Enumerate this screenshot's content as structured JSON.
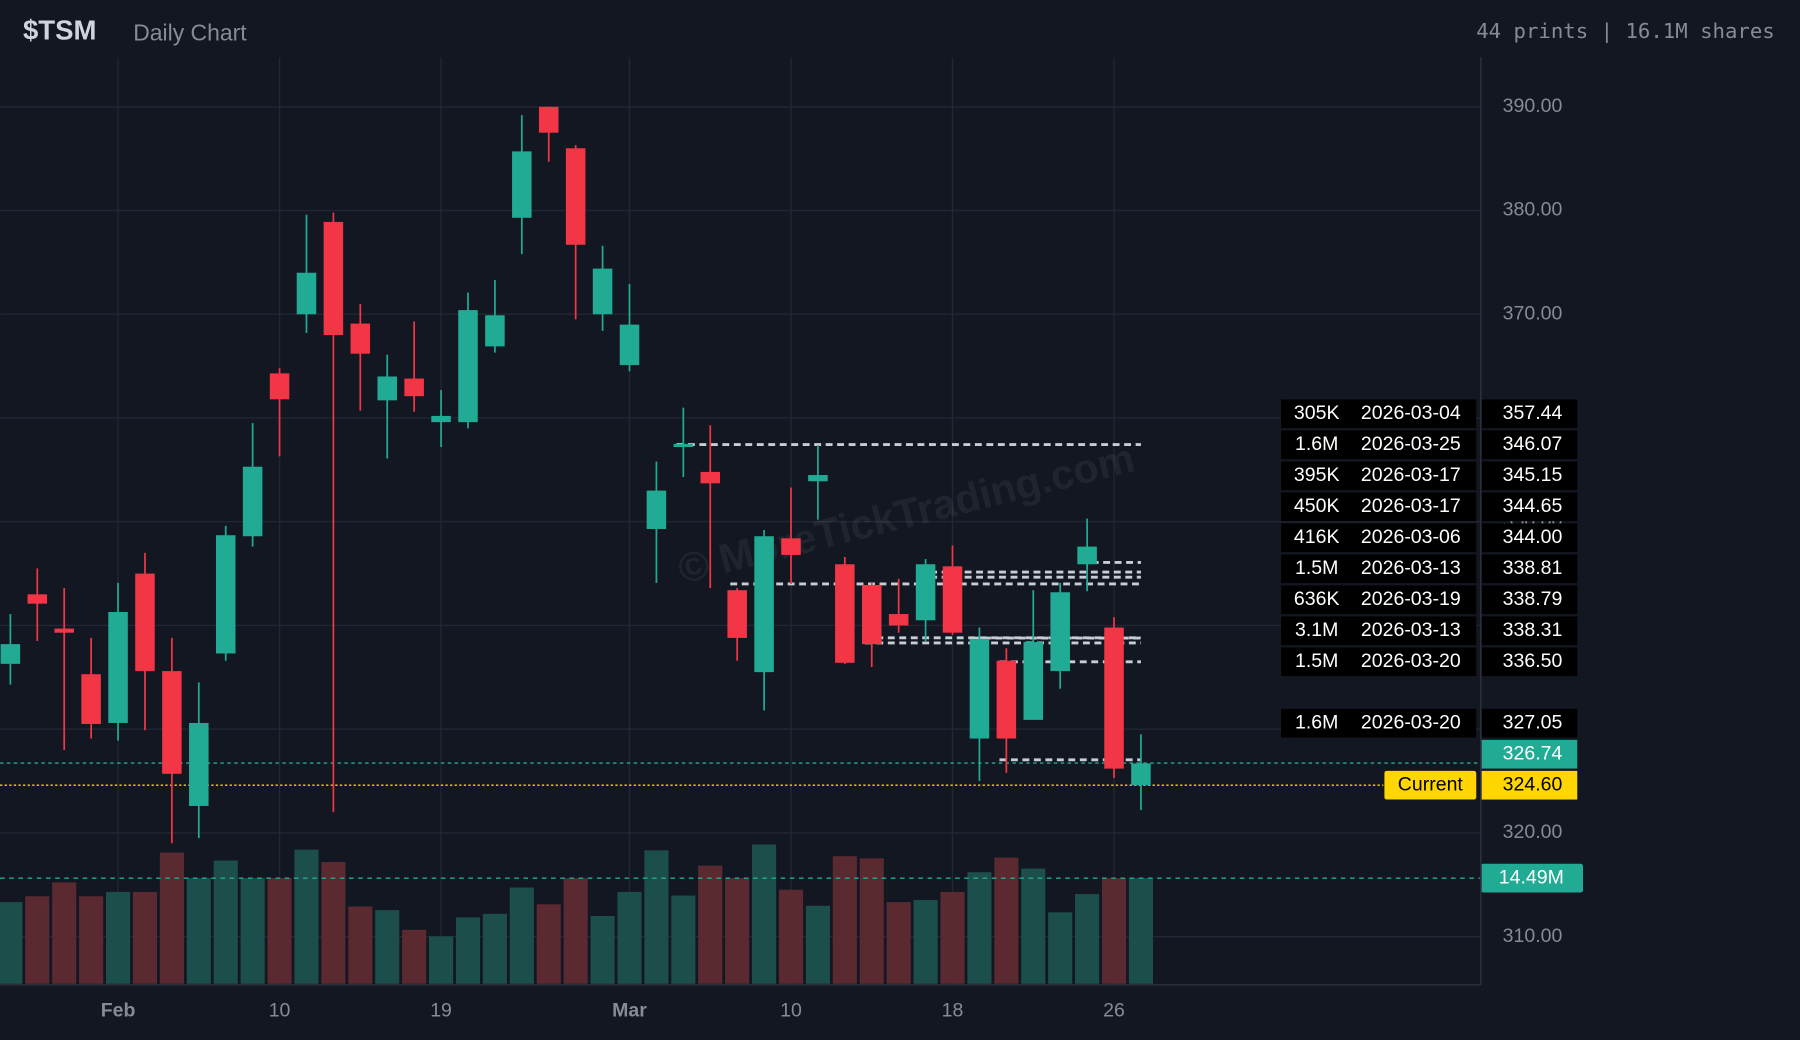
{
  "header": {
    "title": "$TSM",
    "subtitle": "Daily Chart",
    "stats": "44 prints | 16.1M shares"
  },
  "chart_data": {
    "type": "candlestick",
    "watermark": "© MoreTickTrading.com",
    "categories": [
      null,
      null,
      null,
      null,
      "Feb",
      null,
      null,
      null,
      null,
      null,
      "10",
      null,
      null,
      null,
      null,
      null,
      "19",
      null,
      null,
      null,
      null,
      null,
      null,
      "Mar",
      null,
      null,
      null,
      null,
      null,
      "10",
      null,
      null,
      null,
      null,
      null,
      "18",
      null,
      null,
      null,
      null,
      null,
      "26",
      null
    ],
    "open": [
      336.3,
      343.0,
      339.7,
      335.3,
      330.6,
      345.0,
      335.6,
      322.6,
      337.3,
      348.6,
      364.3,
      370.0,
      378.9,
      369.1,
      361.7,
      363.8,
      359.6,
      359.6,
      366.9,
      379.3,
      390.0,
      386.0,
      370.0,
      365.1,
      349.3,
      357.2,
      354.8,
      343.4,
      335.5,
      348.4,
      353.9,
      345.9,
      343.9,
      341.1,
      340.5,
      345.7,
      329.1,
      336.6,
      330.9,
      335.6,
      345.9,
      339.8,
      324.6
    ],
    "high": [
      341.1,
      345.5,
      343.6,
      338.8,
      344.1,
      347.0,
      338.8,
      334.5,
      349.6,
      359.5,
      364.8,
      379.6,
      379.8,
      371.0,
      366.1,
      369.3,
      362.7,
      372.1,
      373.3,
      389.2,
      390.0,
      386.3,
      376.6,
      372.9,
      355.8,
      361.0,
      359.3,
      343.6,
      349.2,
      353.3,
      357.4,
      346.6,
      344.1,
      344.5,
      346.4,
      347.7,
      339.8,
      337.8,
      343.4,
      344.1,
      350.3,
      340.8,
      329.5
    ],
    "low": [
      334.3,
      338.5,
      328.0,
      329.1,
      328.9,
      329.9,
      319.0,
      319.5,
      336.6,
      347.6,
      356.3,
      368.2,
      322.0,
      360.7,
      356.1,
      360.6,
      357.2,
      359.0,
      366.3,
      375.8,
      384.7,
      369.5,
      368.4,
      364.5,
      344.1,
      354.3,
      343.6,
      336.6,
      331.8,
      344.0,
      350.2,
      336.3,
      336.0,
      339.3,
      338.5,
      339.1,
      325.0,
      325.8,
      330.9,
      333.9,
      343.3,
      325.3,
      322.2
    ],
    "close": [
      338.2,
      342.1,
      339.3,
      330.5,
      341.3,
      335.6,
      325.7,
      330.6,
      348.7,
      355.3,
      361.8,
      374.0,
      368.0,
      366.2,
      364.0,
      362.1,
      360.2,
      370.4,
      369.9,
      385.7,
      387.5,
      376.7,
      374.4,
      369.0,
      353.0,
      357.5,
      353.7,
      338.8,
      348.6,
      346.8,
      354.5,
      336.4,
      338.2,
      340.0,
      345.9,
      339.3,
      338.7,
      329.1,
      338.4,
      343.2,
      347.6,
      326.2,
      326.7
    ],
    "volume": [
      11.2,
      12.0,
      13.9,
      12.0,
      12.6,
      12.6,
      18.0,
      14.5,
      16.9,
      14.5,
      14.5,
      18.4,
      16.7,
      10.6,
      10.1,
      7.4,
      6.5,
      9.1,
      9.6,
      13.2,
      10.9,
      14.5,
      9.3,
      12.6,
      18.3,
      12.1,
      16.2,
      14.5,
      19.1,
      12.9,
      10.7,
      17.5,
      17.2,
      11.2,
      11.5,
      12.6,
      15.3,
      17.3,
      15.8,
      9.8,
      12.3,
      14.5,
      14.5
    ],
    "up_color": "#22ab94",
    "down_color": "#f23645",
    "volume_up_color": "#1c4f4b",
    "volume_down_color": "#5a2a30",
    "ylim": [
      305.35,
      394.76
    ],
    "yticks": [
      {
        "value": 310,
        "label": "310.00"
      },
      {
        "value": 320,
        "label": "320.00"
      },
      {
        "value": 330,
        "label": "330.00"
      },
      {
        "value": 340,
        "label": "340.00"
      },
      {
        "value": 350,
        "label": "350.00"
      },
      {
        "value": 360,
        "label": "360.00"
      },
      {
        "value": 370,
        "label": "370.00"
      },
      {
        "value": 380,
        "label": "380.00"
      },
      {
        "value": 390,
        "label": "390.00"
      }
    ],
    "volume_ylim": [
      0,
      20
    ],
    "grid": true,
    "prints": [
      {
        "size": "305K",
        "date": "2026-03-04",
        "price": 357.44
      },
      {
        "size": "1.6M",
        "date": "2026-03-25",
        "price": 346.07
      },
      {
        "size": "395K",
        "date": "2026-03-17",
        "price": 345.15
      },
      {
        "size": "450K",
        "date": "2026-03-17",
        "price": 344.65
      },
      {
        "size": "416K",
        "date": "2026-03-06",
        "price": {
          "value": 344,
          "label": "344.00"
        }
      },
      {
        "size": "1.5M",
        "date": "2026-03-13",
        "price": 338.81
      },
      {
        "size": "636K",
        "date": "2026-03-19",
        "price": 338.79
      },
      {
        "size": "3.1M",
        "date": "2026-03-13",
        "price": 338.31
      },
      {
        "size": "1.5M",
        "date": "2026-03-20",
        "price": {
          "value": 336.5,
          "label": "336.50"
        }
      },
      {
        "size": "1.6M",
        "date": "2026-03-20",
        "price": 327.05
      }
    ],
    "print_line_color": "#c8ccd4",
    "last_price": {
      "price": 326.74,
      "color": "#22ab94"
    },
    "current": {
      "name": "Current",
      "price": {
        "value": 324.6,
        "label": "324.60"
      },
      "color": "#ffd600"
    },
    "volume_line": {
      "value": {
        "value": 14.49,
        "label": "14.49M"
      },
      "color": "#22ab94"
    }
  }
}
